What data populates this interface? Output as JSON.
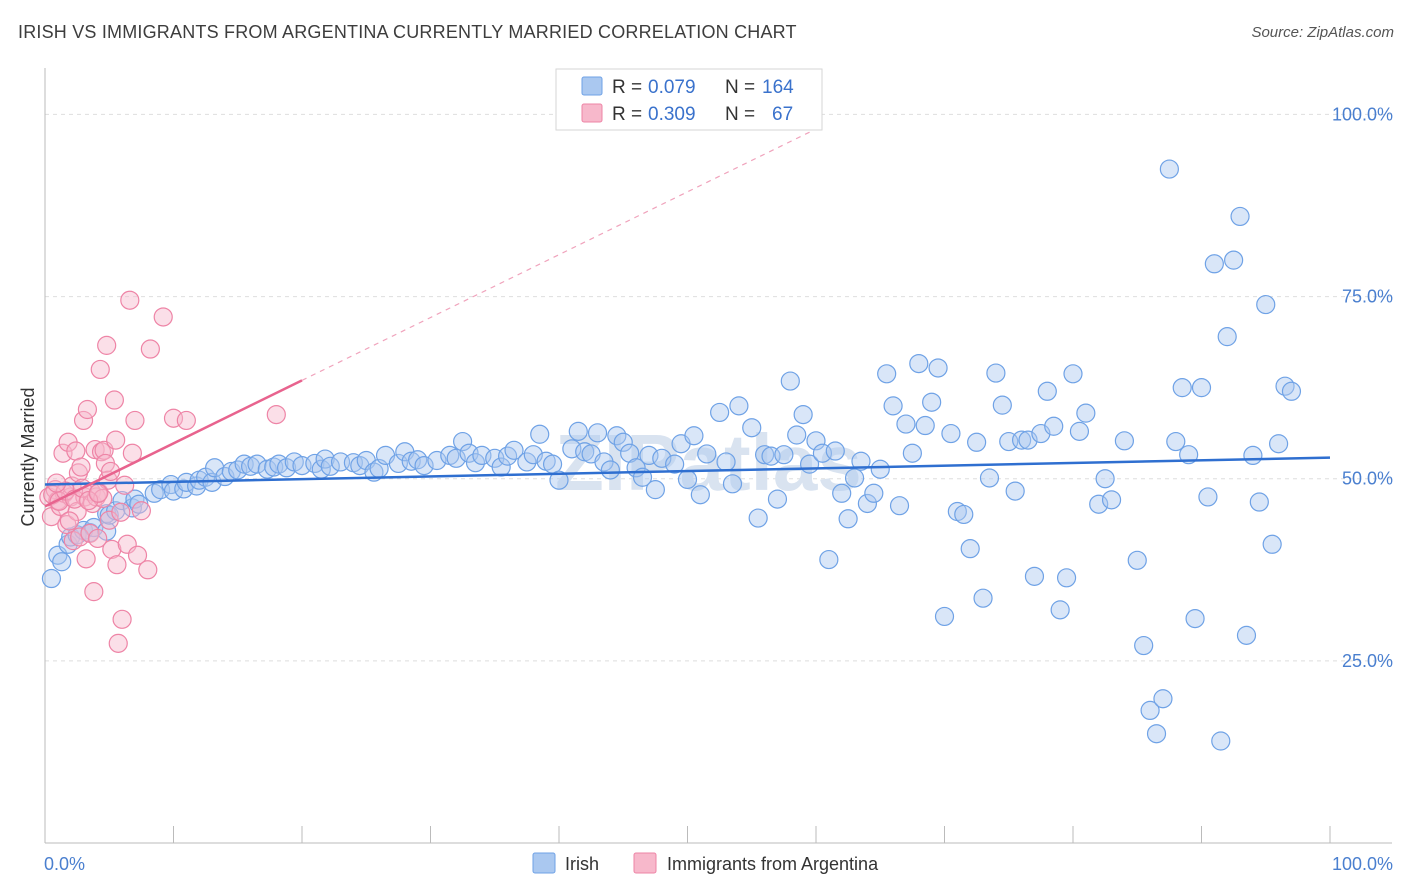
{
  "header": {
    "title": "IRISH VS IMMIGRANTS FROM ARGENTINA CURRENTLY MARRIED CORRELATION CHART",
    "source": "Source: ZipAtlas.com"
  },
  "legend": {
    "rows": [
      {
        "r_label": "R =",
        "r_value": "0.079",
        "n_label": "N =",
        "n_value": "164",
        "color": "#aac8f0"
      },
      {
        "r_label": "R =",
        "r_value": "0.309",
        "n_label": "N =",
        "n_value": "67",
        "color": "#f7b8cb"
      }
    ]
  },
  "bottom_legend": {
    "items": [
      {
        "label": "Irish",
        "color": "#aac8f0"
      },
      {
        "label": "Immigrants from Argentina",
        "color": "#f7b8cb"
      }
    ]
  },
  "watermark": "ZIPatlas",
  "chart_data": {
    "type": "scatter",
    "title": "IRISH VS IMMIGRANTS FROM ARGENTINA CURRENTLY MARRIED CORRELATION CHART",
    "ylabel": "Currently Married",
    "xlabel": "",
    "xlim": [
      0,
      100
    ],
    "ylim": [
      0,
      105
    ],
    "x_tick_labels": [
      "0.0%",
      "100.0%"
    ],
    "y_tick_labels": [
      "25.0%",
      "50.0%",
      "75.0%",
      "100.0%"
    ],
    "y_ticks": [
      25,
      50,
      75,
      100
    ],
    "grid": true,
    "legend_position": "top-center",
    "series": [
      {
        "name": "Irish",
        "color": "#6fa2e6",
        "fill": "#aac8f0",
        "trend": {
          "x0": 0,
          "y0": 49.2,
          "x1": 100,
          "y1": 52.9
        },
        "points": [
          [
            0.5,
            36.3
          ],
          [
            1.0,
            39.5
          ],
          [
            1.3,
            38.6
          ],
          [
            1.8,
            41.0
          ],
          [
            2.0,
            42.0
          ],
          [
            2.5,
            42.3
          ],
          [
            3.0,
            42.9
          ],
          [
            3.5,
            42.6
          ],
          [
            3.8,
            43.3
          ],
          [
            4.8,
            42.8
          ],
          [
            4.8,
            45.2
          ],
          [
            5.0,
            45.0
          ],
          [
            5.5,
            45.6
          ],
          [
            6.0,
            47.0
          ],
          [
            6.8,
            46.0
          ],
          [
            7.0,
            47.2
          ],
          [
            7.3,
            46.5
          ],
          [
            8.5,
            48.0
          ],
          [
            9.0,
            48.5
          ],
          [
            9.8,
            49.2
          ],
          [
            10.0,
            48.3
          ],
          [
            10.8,
            48.6
          ],
          [
            11.0,
            49.5
          ],
          [
            11.8,
            49.0
          ],
          [
            12.0,
            49.8
          ],
          [
            12.5,
            50.2
          ],
          [
            13.0,
            49.5
          ],
          [
            13.2,
            51.5
          ],
          [
            14.0,
            50.3
          ],
          [
            14.5,
            51.0
          ],
          [
            15.0,
            51.2
          ],
          [
            15.5,
            52.0
          ],
          [
            16.0,
            51.7
          ],
          [
            16.5,
            52.0
          ],
          [
            17.3,
            51.3
          ],
          [
            17.8,
            51.6
          ],
          [
            18.2,
            52.0
          ],
          [
            18.8,
            51.5
          ],
          [
            19.4,
            52.3
          ],
          [
            20.0,
            51.8
          ],
          [
            21.0,
            52.1
          ],
          [
            21.5,
            51.3
          ],
          [
            21.8,
            52.7
          ],
          [
            22.2,
            51.7
          ],
          [
            23.0,
            52.3
          ],
          [
            24.0,
            52.2
          ],
          [
            24.5,
            51.8
          ],
          [
            25.0,
            52.5
          ],
          [
            25.6,
            50.9
          ],
          [
            26.0,
            51.4
          ],
          [
            26.5,
            53.2
          ],
          [
            27.5,
            52.1
          ],
          [
            28.0,
            53.7
          ],
          [
            28.5,
            52.4
          ],
          [
            29.0,
            52.6
          ],
          [
            29.5,
            51.8
          ],
          [
            30.5,
            52.5
          ],
          [
            31.5,
            53.2
          ],
          [
            32.0,
            52.8
          ],
          [
            32.5,
            55.1
          ],
          [
            33.0,
            53.5
          ],
          [
            33.5,
            52.2
          ],
          [
            34.0,
            53.2
          ],
          [
            35.0,
            52.8
          ],
          [
            35.5,
            51.6
          ],
          [
            36.0,
            53.1
          ],
          [
            36.5,
            53.9
          ],
          [
            37.5,
            52.3
          ],
          [
            38.0,
            53.3
          ],
          [
            38.5,
            56.1
          ],
          [
            39.0,
            52.4
          ],
          [
            39.5,
            52.0
          ],
          [
            40.0,
            49.8
          ],
          [
            41.0,
            54.1
          ],
          [
            41.5,
            56.5
          ],
          [
            42.0,
            53.7
          ],
          [
            42.5,
            53.4
          ],
          [
            43.0,
            56.3
          ],
          [
            43.5,
            52.3
          ],
          [
            44.0,
            51.2
          ],
          [
            44.5,
            55.9
          ],
          [
            45.0,
            55.0
          ],
          [
            45.5,
            53.5
          ],
          [
            46.0,
            51.5
          ],
          [
            46.5,
            50.2
          ],
          [
            47.0,
            53.2
          ],
          [
            47.5,
            48.5
          ],
          [
            48.0,
            52.8
          ],
          [
            49.0,
            52.0
          ],
          [
            49.5,
            54.8
          ],
          [
            50.0,
            49.9
          ],
          [
            50.5,
            55.9
          ],
          [
            51.0,
            47.8
          ],
          [
            51.5,
            53.4
          ],
          [
            52.5,
            59.1
          ],
          [
            53.0,
            52.3
          ],
          [
            53.5,
            49.3
          ],
          [
            54.0,
            60.0
          ],
          [
            55.0,
            57.0
          ],
          [
            55.5,
            44.6
          ],
          [
            56.0,
            53.3
          ],
          [
            56.5,
            53.1
          ],
          [
            57.0,
            47.2
          ],
          [
            57.5,
            53.3
          ],
          [
            58.0,
            63.4
          ],
          [
            58.5,
            56.0
          ],
          [
            59.0,
            58.8
          ],
          [
            59.5,
            52.0
          ],
          [
            60.0,
            55.2
          ],
          [
            60.5,
            53.5
          ],
          [
            61.0,
            38.9
          ],
          [
            61.5,
            53.8
          ],
          [
            62.0,
            48.0
          ],
          [
            62.5,
            44.5
          ],
          [
            63.0,
            50.1
          ],
          [
            63.5,
            52.4
          ],
          [
            64.0,
            46.6
          ],
          [
            64.5,
            48.0
          ],
          [
            65.0,
            51.3
          ],
          [
            65.5,
            64.4
          ],
          [
            66.0,
            60.0
          ],
          [
            66.5,
            46.3
          ],
          [
            67.0,
            57.5
          ],
          [
            67.5,
            53.5
          ],
          [
            68.0,
            65.8
          ],
          [
            68.5,
            57.3
          ],
          [
            69.0,
            60.5
          ],
          [
            69.5,
            65.2
          ],
          [
            70.0,
            31.1
          ],
          [
            70.5,
            56.2
          ],
          [
            71.0,
            45.5
          ],
          [
            71.5,
            45.1
          ],
          [
            72.0,
            40.4
          ],
          [
            72.5,
            55.0
          ],
          [
            73.0,
            33.6
          ],
          [
            73.5,
            50.1
          ],
          [
            74.0,
            64.5
          ],
          [
            74.5,
            60.1
          ],
          [
            75.0,
            55.1
          ],
          [
            75.5,
            48.3
          ],
          [
            76.0,
            55.3
          ],
          [
            76.5,
            55.3
          ],
          [
            77.0,
            36.6
          ],
          [
            77.5,
            56.2
          ],
          [
            78.0,
            62.0
          ],
          [
            78.5,
            57.2
          ],
          [
            79.0,
            32.0
          ],
          [
            79.5,
            36.4
          ],
          [
            80.0,
            64.4
          ],
          [
            80.5,
            56.5
          ],
          [
            81.0,
            59.0
          ],
          [
            82.0,
            46.5
          ],
          [
            82.5,
            50.0
          ],
          [
            83.0,
            47.1
          ],
          [
            84.0,
            55.2
          ],
          [
            85.0,
            38.8
          ],
          [
            85.5,
            27.1
          ],
          [
            86.0,
            18.2
          ],
          [
            86.5,
            15.0
          ],
          [
            87.0,
            19.8
          ],
          [
            87.5,
            92.5
          ],
          [
            88.0,
            55.1
          ],
          [
            88.5,
            62.5
          ],
          [
            89.0,
            53.3
          ],
          [
            89.5,
            30.8
          ],
          [
            90.0,
            62.5
          ],
          [
            90.5,
            47.5
          ],
          [
            91.0,
            79.5
          ],
          [
            91.5,
            14.0
          ],
          [
            92.0,
            69.5
          ],
          [
            92.5,
            80.0
          ],
          [
            93.0,
            86.0
          ],
          [
            93.5,
            28.5
          ],
          [
            94.0,
            53.2
          ],
          [
            94.5,
            46.8
          ],
          [
            95.0,
            73.9
          ],
          [
            95.5,
            41.0
          ],
          [
            96.0,
            54.8
          ],
          [
            96.5,
            62.7
          ],
          [
            97.0,
            62.0
          ]
        ]
      },
      {
        "name": "Immigrants from Argentina",
        "color": "#ee84a6",
        "fill": "#f7b8cb",
        "trend": {
          "x0": 0,
          "y0": 46.2,
          "x1": 20,
          "y1": 63.5
        },
        "trend_dashed": {
          "x0": 20,
          "y0": 63.5,
          "x1": 60,
          "y1": 98.0
        },
        "points": [
          [
            0.3,
            47.5
          ],
          [
            0.5,
            44.8
          ],
          [
            0.8,
            48.5
          ],
          [
            1.0,
            47.0
          ],
          [
            1.2,
            46.2
          ],
          [
            1.4,
            53.5
          ],
          [
            1.5,
            48.0
          ],
          [
            1.7,
            43.7
          ],
          [
            1.8,
            55.0
          ],
          [
            2.0,
            47.5
          ],
          [
            2.1,
            49.0
          ],
          [
            2.2,
            41.5
          ],
          [
            2.4,
            53.8
          ],
          [
            2.5,
            45.5
          ],
          [
            2.6,
            50.8
          ],
          [
            2.7,
            42.0
          ],
          [
            2.8,
            51.6
          ],
          [
            3.0,
            58.0
          ],
          [
            3.1,
            47.5
          ],
          [
            3.2,
            39.0
          ],
          [
            3.3,
            59.5
          ],
          [
            3.5,
            42.5
          ],
          [
            3.6,
            48.2
          ],
          [
            3.7,
            46.6
          ],
          [
            3.8,
            34.5
          ],
          [
            3.9,
            54.0
          ],
          [
            4.0,
            47.5
          ],
          [
            4.1,
            41.8
          ],
          [
            4.2,
            48.1
          ],
          [
            4.3,
            65.0
          ],
          [
            4.4,
            53.7
          ],
          [
            4.5,
            47.3
          ],
          [
            4.6,
            53.9
          ],
          [
            4.7,
            52.1
          ],
          [
            4.8,
            68.3
          ],
          [
            4.9,
            49.8
          ],
          [
            5.0,
            44.3
          ],
          [
            5.1,
            51.0
          ],
          [
            5.2,
            40.3
          ],
          [
            5.4,
            60.8
          ],
          [
            5.5,
            55.3
          ],
          [
            5.6,
            38.2
          ],
          [
            5.7,
            27.4
          ],
          [
            5.9,
            45.4
          ],
          [
            6.0,
            30.7
          ],
          [
            6.2,
            49.1
          ],
          [
            6.4,
            41.0
          ],
          [
            6.6,
            74.5
          ],
          [
            6.8,
            53.5
          ],
          [
            7.0,
            58.0
          ],
          [
            7.2,
            39.5
          ],
          [
            7.5,
            45.6
          ],
          [
            8.0,
            37.5
          ],
          [
            8.2,
            67.8
          ],
          [
            9.2,
            72.2
          ],
          [
            10.0,
            58.3
          ],
          [
            11.0,
            58.0
          ],
          [
            18.0,
            58.8
          ],
          [
            0.6,
            47.8
          ],
          [
            1.1,
            46.9
          ],
          [
            1.6,
            48.3
          ],
          [
            2.3,
            47.2
          ],
          [
            2.9,
            48.7
          ],
          [
            3.4,
            47.0
          ],
          [
            4.15,
            48.0
          ],
          [
            0.9,
            49.4
          ],
          [
            1.9,
            44.2
          ]
        ]
      }
    ]
  }
}
